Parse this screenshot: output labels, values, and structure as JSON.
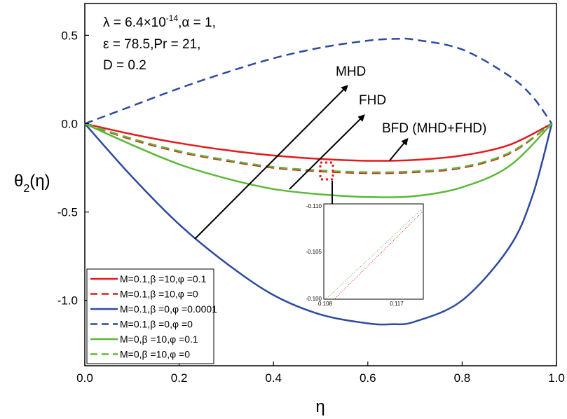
{
  "chart_data": {
    "type": "line",
    "xlabel": "η",
    "ylabel_main": "θ",
    "ylabel_sub": "2",
    "ylabel_rest": "(η)",
    "xlim": [
      0.0,
      1.0
    ],
    "ylim": [
      -1.37,
      0.68
    ],
    "x_ticks": [
      "0.0",
      "0.2",
      "0.4",
      "0.6",
      "0.8",
      "1.0"
    ],
    "y_ticks": [
      "0.5",
      "0.0",
      "-0.5",
      "-1.0"
    ],
    "params": [
      "λ = 6.4×10^-14,α = 1,",
      "ε = 78.5,Pr = 21,",
      "D = 0.2"
    ],
    "params_line1_a": "λ = 6.4×10",
    "params_line1_exp": "-14",
    "params_line1_b": ",α = 1,",
    "params_line2": "ε = 78.5,Pr = 21,",
    "params_line3": "D = 0.2",
    "annotations": [
      "MHD",
      "FHD",
      "BFD (MHD+FHD)"
    ],
    "series": [
      {
        "name": "M=0.1,β =10,φ =0.1",
        "color": "#e41a1c",
        "dash": "solid",
        "x": [
          0.0,
          0.1,
          0.2,
          0.3,
          0.4,
          0.5,
          0.6,
          0.7,
          0.8,
          0.9,
          0.99
        ],
        "y": [
          0.0,
          -0.06,
          -0.11,
          -0.15,
          -0.18,
          -0.2,
          -0.21,
          -0.205,
          -0.18,
          -0.12,
          0.0
        ]
      },
      {
        "name": "M=0.1,β =10,φ =0",
        "color": "#e41a1c",
        "dash": "dashed",
        "x": [
          0.0,
          0.1,
          0.2,
          0.3,
          0.4,
          0.5,
          0.6,
          0.7,
          0.8,
          0.9,
          0.99
        ],
        "y": [
          0.0,
          -0.09,
          -0.16,
          -0.21,
          -0.25,
          -0.27,
          -0.28,
          -0.275,
          -0.25,
          -0.17,
          0.0
        ]
      },
      {
        "name": "M=0.1,β =0,φ =0.0001",
        "color": "#2c4aa0",
        "dash": "solid",
        "x": [
          0.0,
          0.1,
          0.2,
          0.3,
          0.4,
          0.5,
          0.6,
          0.65,
          0.7,
          0.8,
          0.9,
          0.95,
          0.99
        ],
        "y": [
          0.0,
          -0.3,
          -0.57,
          -0.79,
          -0.97,
          -1.08,
          -1.13,
          -1.135,
          -1.12,
          -1.0,
          -0.7,
          -0.4,
          0.0
        ]
      },
      {
        "name": "M=0.1,β =0,φ =0",
        "color": "#2c4aa0",
        "dash": "dashed",
        "x": [
          0.0,
          0.1,
          0.2,
          0.3,
          0.4,
          0.5,
          0.6,
          0.66,
          0.7,
          0.8,
          0.9,
          0.95,
          0.99
        ],
        "y": [
          0.0,
          0.1,
          0.2,
          0.29,
          0.37,
          0.43,
          0.47,
          0.48,
          0.475,
          0.42,
          0.27,
          0.15,
          0.0
        ]
      },
      {
        "name": "M=0,β =10,φ =0.1",
        "color": "#5cb83a",
        "dash": "solid",
        "x": [
          0.0,
          0.1,
          0.2,
          0.3,
          0.4,
          0.5,
          0.6,
          0.7,
          0.8,
          0.9,
          0.99
        ],
        "y": [
          0.0,
          -0.12,
          -0.23,
          -0.31,
          -0.37,
          -0.4,
          -0.415,
          -0.41,
          -0.36,
          -0.24,
          0.0
        ]
      },
      {
        "name": "M=0,β =10,φ =0",
        "color": "#5cb83a",
        "dash": "dashed",
        "x": [
          0.0,
          0.1,
          0.2,
          0.3,
          0.4,
          0.5,
          0.6,
          0.7,
          0.8,
          0.9,
          0.99
        ],
        "y": [
          0.0,
          -0.085,
          -0.155,
          -0.205,
          -0.245,
          -0.265,
          -0.275,
          -0.27,
          -0.245,
          -0.165,
          0.0
        ]
      }
    ],
    "inset": {
      "y_ticks": [
        "-0.110",
        "-0.105",
        "-0.100"
      ],
      "x_ticks": [
        "0.108",
        "0.117"
      ]
    }
  }
}
